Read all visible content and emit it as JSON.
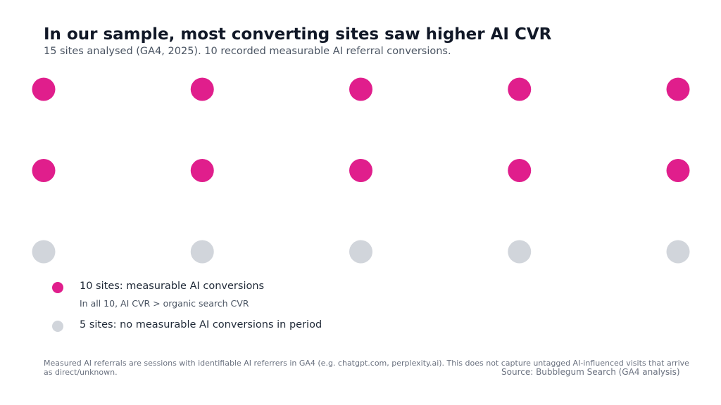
{
  "chart_data": {
    "type": "waffle",
    "title": "In our sample, most converting sites saw higher AI CVR",
    "subtitle": "15 sites analysed (GA4, 2025). 10 recorded measurable AI referral conversions.",
    "total": 15,
    "columns": 5,
    "rows": 3,
    "series": [
      {
        "name": "converting",
        "count": 10,
        "color": "#e01e8c",
        "label": "10 sites: measurable AI conversions",
        "note": "In all 10, AI CVR > organic search CVR"
      },
      {
        "name": "non-converting",
        "count": 5,
        "color": "#d1d5db",
        "label": "5 sites: no measurable AI conversions in period"
      }
    ],
    "footnote_line1": "Measured AI referrals are sessions with identifiable AI referrers in GA4 (e.g. chatgpt.com, perplexity.ai). This does not capture untagged AI-influenced visits that arrive",
    "footnote_line2": "as direct/unknown.",
    "source": "Source: Bubblegum Search (GA4 analysis)"
  }
}
